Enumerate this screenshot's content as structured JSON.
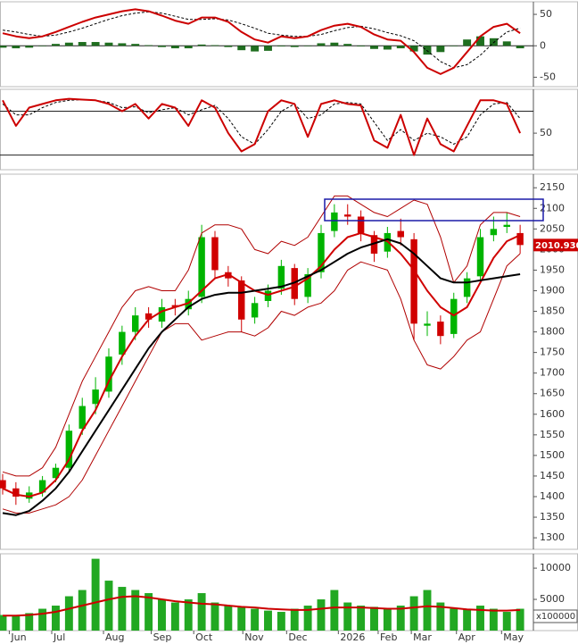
{
  "chart_data": [
    {
      "type": "line",
      "ylim": [
        -65,
        70
      ],
      "yticks": [
        -50,
        0,
        50
      ],
      "levels": [
        0
      ],
      "series": [
        {
          "kind": "bar",
          "color": "#1f6e1f",
          "values": [
            -3,
            -4,
            -3,
            0,
            3,
            5,
            6,
            6,
            5,
            4,
            3,
            1,
            -2,
            -4,
            -4,
            2,
            1,
            -2,
            -7,
            -9,
            -8,
            -1,
            -2,
            0,
            4,
            5,
            3,
            -1,
            -5,
            -6,
            -4,
            -9,
            -14,
            -10,
            0,
            10,
            15,
            12,
            7,
            -4
          ]
        },
        {
          "kind": "line",
          "color": "#000000",
          "dash": true,
          "width": 1,
          "values": [
            25,
            22,
            18,
            15,
            17,
            22,
            28,
            35,
            42,
            48,
            52,
            54,
            52,
            47,
            42,
            42,
            43,
            41,
            35,
            28,
            20,
            17,
            15,
            15,
            18,
            24,
            29,
            31,
            27,
            21,
            16,
            8,
            -8,
            -25,
            -35,
            -30,
            -15,
            5,
            22,
            28
          ]
        },
        {
          "kind": "line",
          "color": "#cc0000",
          "width": 2,
          "values": [
            20,
            15,
            12,
            15,
            22,
            30,
            38,
            45,
            50,
            55,
            58,
            55,
            48,
            40,
            35,
            45,
            45,
            38,
            22,
            10,
            5,
            15,
            12,
            15,
            25,
            32,
            35,
            30,
            18,
            10,
            8,
            -10,
            -35,
            -45,
            -35,
            -10,
            15,
            30,
            35,
            20
          ]
        }
      ]
    },
    {
      "type": "line",
      "ylim": [
        0,
        110
      ],
      "yticks": [
        50
      ],
      "levels": [
        80,
        20
      ],
      "series": [
        {
          "kind": "line",
          "color": "#000000",
          "dash": true,
          "width": 1,
          "values": [
            90,
            75,
            75,
            85,
            92,
            95,
            96,
            95,
            92,
            85,
            86,
            78,
            82,
            85,
            75,
            82,
            88,
            70,
            45,
            35,
            55,
            80,
            90,
            70,
            75,
            90,
            92,
            90,
            65,
            40,
            55,
            40,
            50,
            45,
            35,
            45,
            75,
            90,
            92,
            70
          ]
        },
        {
          "kind": "line",
          "color": "#cc0000",
          "width": 2,
          "values": [
            95,
            60,
            85,
            90,
            95,
            97,
            96,
            95,
            90,
            80,
            90,
            70,
            90,
            85,
            60,
            95,
            85,
            50,
            25,
            35,
            80,
            95,
            90,
            45,
            90,
            95,
            90,
            88,
            40,
            30,
            75,
            20,
            70,
            35,
            25,
            60,
            95,
            95,
            90,
            50
          ]
        }
      ]
    },
    {
      "type": "candlestick",
      "ylim": [
        1272,
        2183
      ],
      "yticks": [
        1300,
        1350,
        1400,
        1450,
        1500,
        1550,
        1600,
        1650,
        1700,
        1750,
        1800,
        1850,
        1900,
        1950,
        2000,
        2050,
        2100,
        2150
      ],
      "up_color": "#00b400",
      "down_color": "#d00000",
      "open": [
        1440,
        1420,
        1395,
        1410,
        1445,
        1470,
        1565,
        1625,
        1655,
        1745,
        1800,
        1845,
        1825,
        1865,
        1855,
        1885,
        2030,
        1945,
        1925,
        1835,
        1875,
        1905,
        1955,
        1885,
        1945,
        2045,
        2085,
        2080,
        2035,
        1995,
        2045,
        2025,
        1815,
        1825,
        1795,
        1885,
        1935,
        2035,
        2055,
        2040
      ],
      "high": [
        1455,
        1435,
        1425,
        1450,
        1480,
        1575,
        1640,
        1690,
        1760,
        1815,
        1860,
        1860,
        1880,
        1880,
        1900,
        2060,
        2045,
        1960,
        1935,
        1885,
        1915,
        1975,
        1965,
        1955,
        2060,
        2110,
        2110,
        2095,
        2045,
        2055,
        2075,
        2040,
        1850,
        1840,
        1895,
        1945,
        2050,
        2080,
        2090,
        2060
      ],
      "low": [
        1405,
        1380,
        1385,
        1400,
        1435,
        1460,
        1550,
        1600,
        1640,
        1720,
        1780,
        1810,
        1810,
        1840,
        1840,
        1870,
        1930,
        1910,
        1800,
        1820,
        1860,
        1890,
        1865,
        1870,
        1930,
        2030,
        2060,
        2020,
        1970,
        1980,
        2010,
        1780,
        1790,
        1770,
        1785,
        1870,
        1920,
        2020,
        2040,
        1990
      ],
      "close": [
        1420,
        1400,
        1410,
        1440,
        1470,
        1560,
        1620,
        1660,
        1740,
        1800,
        1840,
        1830,
        1860,
        1860,
        1880,
        2030,
        1950,
        1930,
        1830,
        1870,
        1900,
        1960,
        1880,
        1940,
        2040,
        2090,
        2080,
        2040,
        1990,
        2040,
        2030,
        1820,
        1820,
        1790,
        1880,
        1930,
        2030,
        2050,
        2060,
        2010.93
      ],
      "last_price": {
        "value": 2010.93,
        "label": "2010.930",
        "color": "#cc0000"
      },
      "series": [
        {
          "kind": "line",
          "color": "#b00000",
          "width": 1,
          "values": [
            1460,
            1450,
            1450,
            1470,
            1520,
            1600,
            1680,
            1740,
            1800,
            1860,
            1900,
            1910,
            1900,
            1900,
            1950,
            2040,
            2060,
            2060,
            2050,
            2000,
            1990,
            2020,
            2010,
            2030,
            2080,
            2130,
            2130,
            2110,
            2090,
            2080,
            2100,
            2120,
            2110,
            2030,
            1920,
            1960,
            2060,
            2090,
            2090,
            2080
          ]
        },
        {
          "kind": "line",
          "color": "#b00000",
          "width": 1,
          "values": [
            1370,
            1360,
            1360,
            1370,
            1380,
            1400,
            1440,
            1500,
            1560,
            1620,
            1680,
            1740,
            1800,
            1820,
            1820,
            1780,
            1790,
            1800,
            1800,
            1790,
            1810,
            1850,
            1840,
            1860,
            1870,
            1900,
            1950,
            1970,
            1960,
            1950,
            1880,
            1780,
            1720,
            1710,
            1740,
            1780,
            1800,
            1880,
            1960,
            1990
          ]
        },
        {
          "kind": "line",
          "color": "#d00000",
          "width": 2,
          "values": [
            1420,
            1405,
            1400,
            1410,
            1440,
            1490,
            1560,
            1610,
            1680,
            1740,
            1790,
            1830,
            1850,
            1860,
            1870,
            1900,
            1930,
            1940,
            1920,
            1900,
            1890,
            1900,
            1910,
            1930,
            1960,
            2000,
            2030,
            2040,
            2030,
            2020,
            1990,
            1950,
            1900,
            1860,
            1840,
            1860,
            1920,
            1980,
            2020,
            2035
          ]
        },
        {
          "kind": "line",
          "color": "#000000",
          "width": 2,
          "values": [
            1360,
            1355,
            1365,
            1390,
            1420,
            1460,
            1510,
            1560,
            1610,
            1660,
            1710,
            1760,
            1800,
            1830,
            1860,
            1880,
            1890,
            1895,
            1895,
            1900,
            1905,
            1910,
            1920,
            1935,
            1950,
            1970,
            1990,
            2005,
            2015,
            2025,
            2015,
            1990,
            1960,
            1930,
            1920,
            1920,
            1925,
            1930,
            1935,
            1940
          ]
        }
      ]
    },
    {
      "type": "bar",
      "ylim": [
        0,
        12300
      ],
      "yticks": [
        5000,
        10000
      ],
      "unit_label": "x100000",
      "xlim": [
        -0.2,
        40
      ],
      "xticks": [
        {
          "value": 0.5,
          "label": "Jun"
        },
        {
          "value": 3.7,
          "label": "Jul"
        },
        {
          "value": 7.6,
          "label": "Aug"
        },
        {
          "value": 11.2,
          "label": "Sep"
        },
        {
          "value": 14.4,
          "label": "Oct"
        },
        {
          "value": 18.1,
          "label": "Nov"
        },
        {
          "value": 21.4,
          "label": "Dec"
        },
        {
          "value": 25.3,
          "label": "2026"
        },
        {
          "value": 28.3,
          "label": "Feb"
        },
        {
          "value": 30.8,
          "label": "Mar"
        },
        {
          "value": 34.2,
          "label": "Apr"
        },
        {
          "value": 37.6,
          "label": "May"
        }
      ],
      "series": [
        {
          "kind": "bar",
          "color": "#22a822",
          "values": [
            2500,
            2300,
            2800,
            3500,
            4000,
            5500,
            6500,
            11500,
            8000,
            7000,
            6500,
            6000,
            5000,
            4500,
            5000,
            6000,
            4500,
            4000,
            3800,
            3500,
            3200,
            3000,
            3500,
            4000,
            5000,
            6500,
            4500,
            4000,
            3800,
            3500,
            4000,
            5500,
            6500,
            4500,
            3500,
            3500,
            4000,
            3500,
            3000,
            3500
          ]
        },
        {
          "kind": "line",
          "color": "#cc0000",
          "width": 2,
          "values": [
            2400,
            2400,
            2500,
            2700,
            3000,
            3500,
            4000,
            4500,
            5000,
            5400,
            5500,
            5300,
            5000,
            4700,
            4500,
            4300,
            4200,
            4000,
            3800,
            3700,
            3500,
            3400,
            3300,
            3300,
            3500,
            3700,
            3700,
            3700,
            3600,
            3500,
            3500,
            3700,
            3900,
            3800,
            3600,
            3400,
            3300,
            3200,
            3200,
            3300
          ]
        }
      ]
    }
  ]
}
